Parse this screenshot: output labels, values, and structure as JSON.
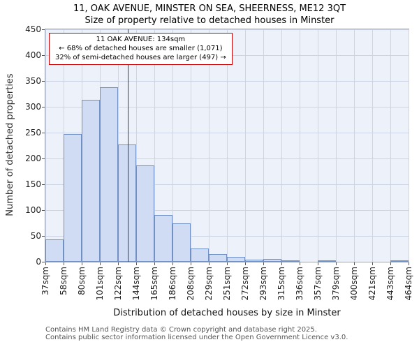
{
  "footer": {
    "line1": "Contains HM Land Registry data © Crown copyright and database right 2025.",
    "line2": "Contains public sector information licensed under the Open Government Licence v3.0."
  },
  "chart_data": {
    "type": "bar",
    "title": "11, OAK AVENUE, MINSTER ON SEA, SHEERNESS, ME12 3QT",
    "subtitle": "Size of property relative to detached houses in Minster",
    "xlabel": "Distribution of detached houses by size in Minster",
    "ylabel": "Number of detached properties",
    "ylim": [
      0,
      450
    ],
    "ytick_step": 50,
    "grid": true,
    "categories": [
      "37sqm",
      "58sqm",
      "80sqm",
      "101sqm",
      "122sqm",
      "144sqm",
      "165sqm",
      "186sqm",
      "208sqm",
      "229sqm",
      "251sqm",
      "272sqm",
      "293sqm",
      "315sqm",
      "336sqm",
      "357sqm",
      "379sqm",
      "400sqm",
      "421sqm",
      "443sqm",
      "464sqm"
    ],
    "values": [
      43,
      247,
      313,
      338,
      227,
      186,
      91,
      74,
      25,
      15,
      9,
      4,
      5,
      2,
      0,
      2,
      0,
      0,
      0,
      2
    ],
    "marker": {
      "value": 134,
      "unit": "sqm"
    },
    "annotation": {
      "line1": "11 OAK AVENUE: 134sqm",
      "line2": "← 68% of detached houses are smaller (1,071)",
      "line3": "32% of semi-detached houses are larger (497) →"
    },
    "colors": {
      "bar_fill": "#cfdcf3",
      "bar_border": "#7191c4",
      "grid": "#ccd4e6",
      "plot_bg": "#edf1fa",
      "marker": "#aa1111",
      "annotation_border": "#cc0000"
    }
  }
}
